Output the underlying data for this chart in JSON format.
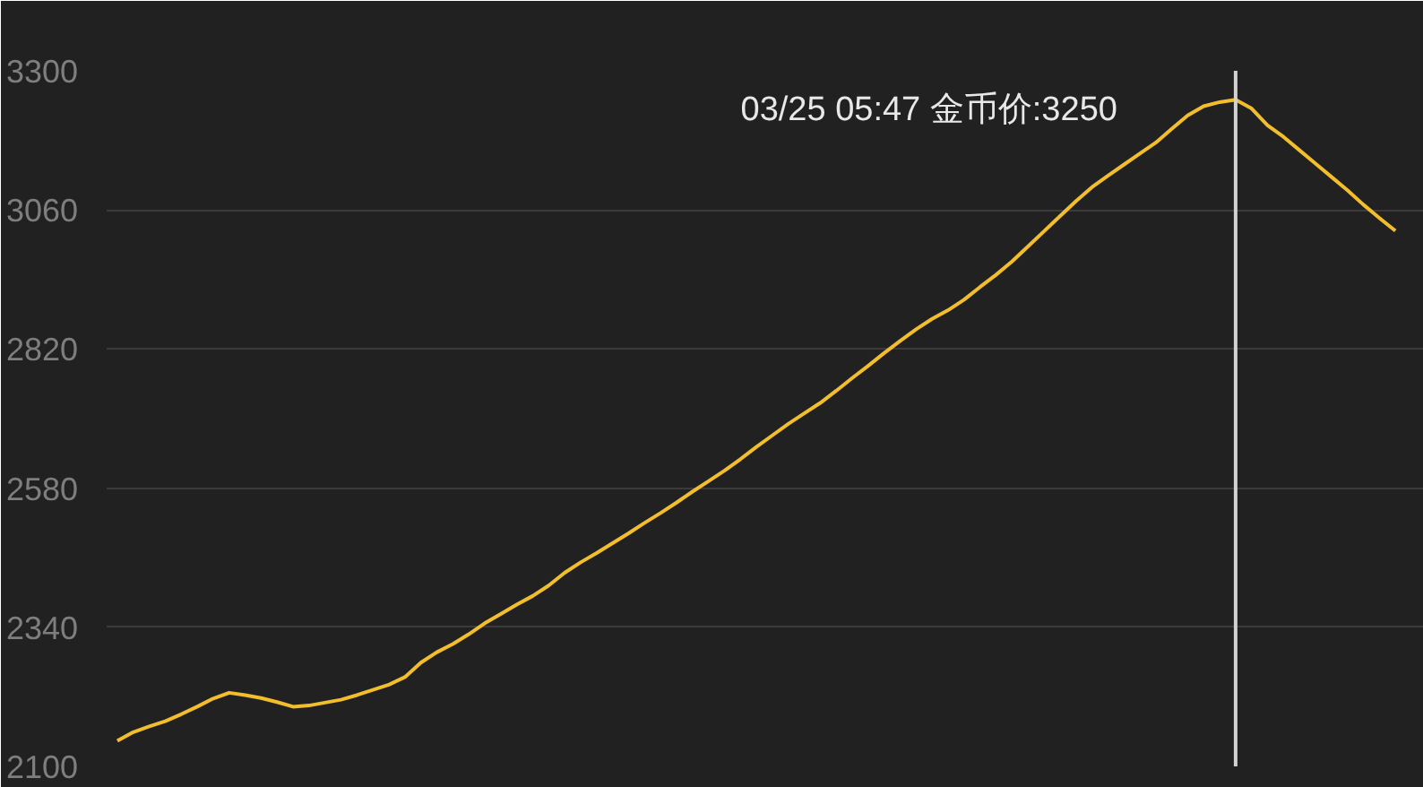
{
  "chart_data": {
    "type": "line",
    "categories": [
      null,
      null,
      null,
      null,
      null,
      null,
      null,
      null,
      null,
      null,
      null,
      null,
      null,
      null,
      null,
      null,
      null,
      null,
      null,
      null,
      null,
      null,
      null,
      null,
      null,
      null,
      null,
      null,
      null,
      null,
      null,
      null,
      null,
      null,
      null,
      null,
      null,
      null,
      null,
      null,
      null,
      null,
      null,
      null,
      null,
      null,
      null,
      null,
      null,
      null,
      null,
      null,
      null,
      null,
      null,
      null,
      null,
      null,
      null,
      null,
      null,
      null,
      null,
      null,
      null,
      null,
      null,
      null,
      null,
      null,
      null,
      null,
      null,
      null,
      null,
      null,
      null,
      null,
      null,
      null,
      null
    ],
    "values": [
      2144,
      2159,
      2169,
      2178,
      2190,
      2203,
      2217,
      2227,
      2223,
      2218,
      2211,
      2203,
      2205,
      2210,
      2215,
      2223,
      2232,
      2241,
      2254,
      2279,
      2297,
      2311,
      2328,
      2347,
      2363,
      2379,
      2394,
      2412,
      2434,
      2452,
      2468,
      2485,
      2502,
      2520,
      2537,
      2555,
      2574,
      2592,
      2610,
      2630,
      2651,
      2671,
      2691,
      2709,
      2727,
      2748,
      2770,
      2791,
      2813,
      2834,
      2854,
      2872,
      2887,
      2905,
      2927,
      2948,
      2971,
      2997,
      3023,
      3049,
      3075,
      3099,
      3119,
      3138,
      3157,
      3176,
      3200,
      3223,
      3239,
      3246,
      3250,
      3235,
      3206,
      3186,
      3163,
      3140,
      3117,
      3094,
      3069,
      3046,
      3024
    ],
    "color": "#f2be2c",
    "ylim": [
      2100,
      3300
    ],
    "yticks": [
      2100,
      2340,
      2580,
      2820,
      3060,
      3300
    ],
    "grid": "y",
    "annotations": [
      "03/25 05:47 金币价:3250"
    ]
  }
}
